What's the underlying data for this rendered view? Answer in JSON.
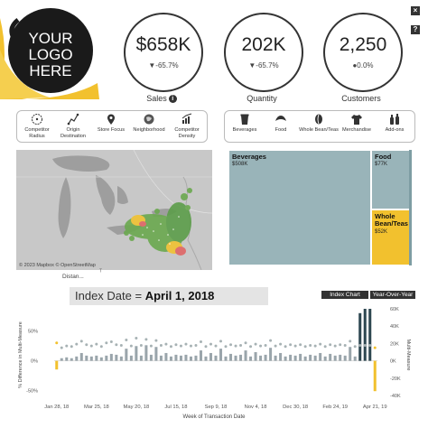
{
  "logo": {
    "line1": "YOUR",
    "line2": "LOGO",
    "line3": "HERE",
    "colors": {
      "yellow": "#f2c12e",
      "black": "#1a1a1a"
    }
  },
  "top_buttons": {
    "close": "×",
    "help": "?"
  },
  "kpis": [
    {
      "value": "$658K",
      "delta": "▼-65.7%",
      "label": "Sales",
      "has_info": true
    },
    {
      "value": "202K",
      "delta": "▼-65.7%",
      "label": "Quantity",
      "has_info": false
    },
    {
      "value": "2,250",
      "delta": "●0.0%",
      "label": "Customers",
      "has_info": false
    }
  ],
  "map_tools": [
    {
      "label": "Competitor Radius",
      "icon": "radius-icon"
    },
    {
      "label": "Origin Destination",
      "icon": "route-icon"
    },
    {
      "label": "Store Focus",
      "icon": "pin-icon"
    },
    {
      "label": "Neighborhood",
      "icon": "neighborhood-icon"
    },
    {
      "label": "Competitor Density",
      "icon": "density-icon"
    }
  ],
  "category_tools": [
    {
      "label": "Beverages",
      "icon": "cup-icon"
    },
    {
      "label": "Food",
      "icon": "croissant-icon"
    },
    {
      "label": "Whole Bean/Teas",
      "icon": "bean-icon"
    },
    {
      "label": "Merchandise",
      "icon": "shirt-icon"
    },
    {
      "label": "Add-ons",
      "icon": "bottles-icon"
    }
  ],
  "map": {
    "attribution": "© 2023 Mapbox © OpenStreetMap",
    "distance_label": "Distan..."
  },
  "treemap": [
    {
      "name": "Beverages",
      "value": "$508K",
      "color": "#99b4b9"
    },
    {
      "name": "Food",
      "value": "$77K",
      "color": "#99b4b9"
    },
    {
      "name": "Whole Bean/Teas",
      "value": "$52K",
      "color": "#f2c12e"
    }
  ],
  "index": {
    "prefix": "Index Date = ",
    "date": "April 1, 2018"
  },
  "tabs": {
    "index_chart": "Index Chart",
    "yoy": "Year-Over-Year"
  },
  "chart_data": {
    "type": "bar",
    "title": "",
    "xlabel": "Week of Transaction Date",
    "ylabel_left": "% Difference in Multi-Measure",
    "ylabel_right": "Multi-Measure",
    "left_ticks": [
      "50%",
      "0%",
      "-50%"
    ],
    "right_ticks": [
      "60K",
      "40K",
      "20K",
      "0K",
      "-20K",
      "-40K"
    ],
    "x_tick_labels": [
      "Jan 28, 18",
      "Mar 25, 18",
      "May 20, 18",
      "Jul 15, 18",
      "Sep 9, 18",
      "Nov 4, 18",
      "Dec 30, 18",
      "Feb 24, 19",
      "Apr 21, 19"
    ],
    "ylim_right": [
      -40000,
      60000
    ],
    "bars": [
      {
        "week": "Jan 28, 18",
        "value": -10000
      },
      {
        "week": "Feb 4, 18",
        "value": 3000
      },
      {
        "week": "Feb 11, 18",
        "value": 4000
      },
      {
        "week": "Feb 18, 18",
        "value": 3000
      },
      {
        "week": "Feb 25, 18",
        "value": 5000
      },
      {
        "week": "Mar 4, 18",
        "value": 9000
      },
      {
        "week": "Mar 11, 18",
        "value": 6000
      },
      {
        "week": "Mar 18, 18",
        "value": 5000
      },
      {
        "week": "Mar 25, 18",
        "value": 6000
      },
      {
        "week": "Apr 1, 18",
        "value": 4000
      },
      {
        "week": "Apr 8, 18",
        "value": 6000
      },
      {
        "week": "Apr 15, 18",
        "value": 8000
      },
      {
        "week": "Apr 22, 18",
        "value": 7000
      },
      {
        "week": "Apr 29, 18",
        "value": 5000
      },
      {
        "week": "May 6, 18",
        "value": 14000
      },
      {
        "week": "May 13, 18",
        "value": 6000
      },
      {
        "week": "May 20, 18",
        "value": 17000
      },
      {
        "week": "May 27, 18",
        "value": 6000
      },
      {
        "week": "Jun 3, 18",
        "value": 18000
      },
      {
        "week": "Jun 10, 18",
        "value": 7000
      },
      {
        "week": "Jun 17, 18",
        "value": 16000
      },
      {
        "week": "Jun 24, 18",
        "value": 6000
      },
      {
        "week": "Jul 1, 18",
        "value": 9000
      },
      {
        "week": "Jul 8, 18",
        "value": 5000
      },
      {
        "week": "Jul 15, 18",
        "value": 7000
      },
      {
        "week": "Jul 22, 18",
        "value": 6000
      },
      {
        "week": "Jul 29, 18",
        "value": 7000
      },
      {
        "week": "Aug 5, 18",
        "value": 5000
      },
      {
        "week": "Aug 12, 18",
        "value": 6000
      },
      {
        "week": "Aug 19, 18",
        "value": 12000
      },
      {
        "week": "Aug 26, 18",
        "value": 5000
      },
      {
        "week": "Sep 2, 18",
        "value": 9000
      },
      {
        "week": "Sep 9, 18",
        "value": 6000
      },
      {
        "week": "Sep 16, 18",
        "value": 14000
      },
      {
        "week": "Sep 23, 18",
        "value": 5000
      },
      {
        "week": "Sep 30, 18",
        "value": 8000
      },
      {
        "week": "Oct 7, 18",
        "value": 6000
      },
      {
        "week": "Oct 14, 18",
        "value": 7000
      },
      {
        "week": "Oct 21, 18",
        "value": 12000
      },
      {
        "week": "Oct 28, 18",
        "value": 5000
      },
      {
        "week": "Nov 4, 18",
        "value": 10000
      },
      {
        "week": "Nov 11, 18",
        "value": 6000
      },
      {
        "week": "Nov 18, 18",
        "value": 7000
      },
      {
        "week": "Nov 25, 18",
        "value": 15000
      },
      {
        "week": "Dec 2, 18",
        "value": 6000
      },
      {
        "week": "Dec 9, 18",
        "value": 9000
      },
      {
        "week": "Dec 16, 18",
        "value": 5000
      },
      {
        "week": "Dec 23, 18",
        "value": 7000
      },
      {
        "week": "Dec 30, 18",
        "value": 6000
      },
      {
        "week": "Jan 6, 19",
        "value": 8000
      },
      {
        "week": "Jan 13, 19",
        "value": 5000
      },
      {
        "week": "Jan 20, 19",
        "value": 7000
      },
      {
        "week": "Jan 27, 19",
        "value": 6000
      },
      {
        "week": "Feb 3, 19",
        "value": 9000
      },
      {
        "week": "Feb 10, 19",
        "value": 5000
      },
      {
        "week": "Feb 17, 19",
        "value": 8000
      },
      {
        "week": "Feb 24, 19",
        "value": 6000
      },
      {
        "week": "Mar 3, 19",
        "value": 7000
      },
      {
        "week": "Mar 10, 19",
        "value": 6000
      },
      {
        "week": "Mar 17, 19",
        "value": 16000
      },
      {
        "week": "Mar 24, 19",
        "value": 5000
      },
      {
        "week": "Mar 31, 19",
        "value": 55000
      },
      {
        "week": "Apr 7, 19",
        "value": 60000
      },
      {
        "week": "Apr 14, 19",
        "value": 60000
      },
      {
        "week": "Apr 21, 19",
        "value": -35000
      }
    ],
    "dot_pct": [
      30,
      22,
      25,
      24,
      28,
      33,
      27,
      25,
      28,
      24,
      30,
      32,
      27,
      26,
      35,
      25,
      38,
      26,
      36,
      25,
      34,
      26,
      28,
      24,
      27,
      25,
      28,
      25,
      26,
      32,
      24,
      28,
      25,
      33,
      24,
      27,
      25,
      26,
      30,
      24,
      28,
      25,
      26,
      34,
      25,
      28,
      24,
      27,
      25,
      27,
      24,
      26,
      25,
      28,
      24,
      27,
      25,
      27,
      26,
      33,
      24,
      26,
      26,
      26,
      22
    ],
    "colors": {
      "bar": "#9aa5ab",
      "bar_highlight": "#2e4751",
      "dot": "#a7b2b4",
      "negative": "#f2c12e"
    }
  }
}
